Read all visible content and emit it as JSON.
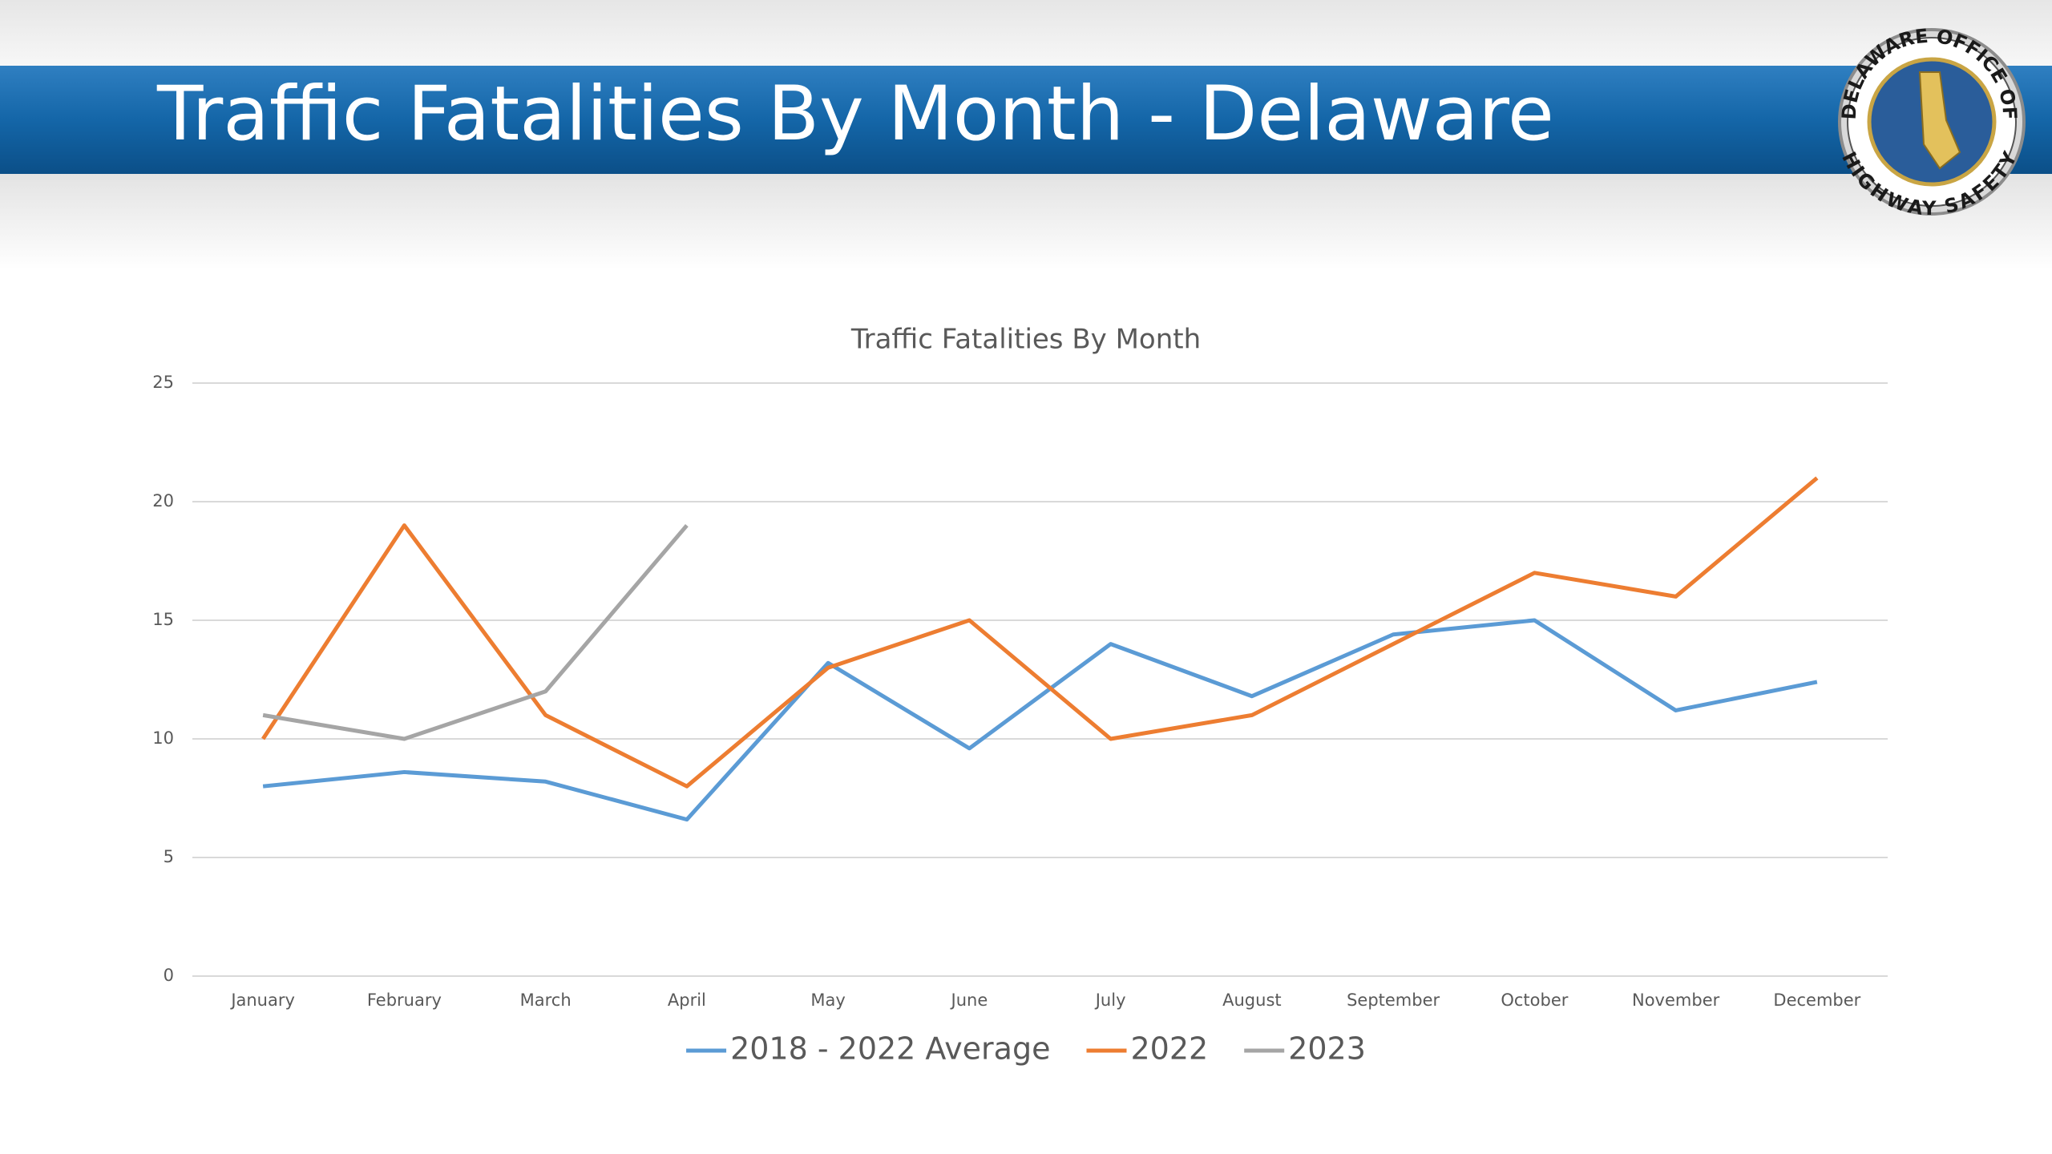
{
  "header": {
    "title": "Traffic Fatalities By Month - Delaware"
  },
  "logo": {
    "top": "DELAWARE OFFICE OF",
    "bottom": "HIGHWAY SAFETY"
  },
  "chart_data": {
    "type": "line",
    "title": "Traffic Fatalities By Month",
    "categories": [
      "January",
      "February",
      "March",
      "April",
      "May",
      "June",
      "July",
      "August",
      "September",
      "October",
      "November",
      "December"
    ],
    "series": [
      {
        "name": "2018 - 2022 Average",
        "color": "#5b9bd5",
        "values": [
          8,
          8.6,
          8.2,
          6.6,
          13.2,
          9.6,
          14,
          11.8,
          14.4,
          15,
          11.2,
          12.4
        ]
      },
      {
        "name": "2022",
        "color": "#ed7d31",
        "values": [
          10,
          19,
          11,
          8,
          13,
          15,
          10,
          11,
          14,
          17,
          16,
          21
        ]
      },
      {
        "name": "2023",
        "color": "#a5a5a5",
        "values": [
          11,
          10,
          12,
          19,
          null,
          null,
          null,
          null,
          null,
          null,
          null,
          null
        ]
      }
    ],
    "ylim": [
      0,
      25
    ],
    "yticks": [
      0,
      5,
      10,
      15,
      20,
      25
    ],
    "grid": true,
    "legend": "bottom"
  }
}
